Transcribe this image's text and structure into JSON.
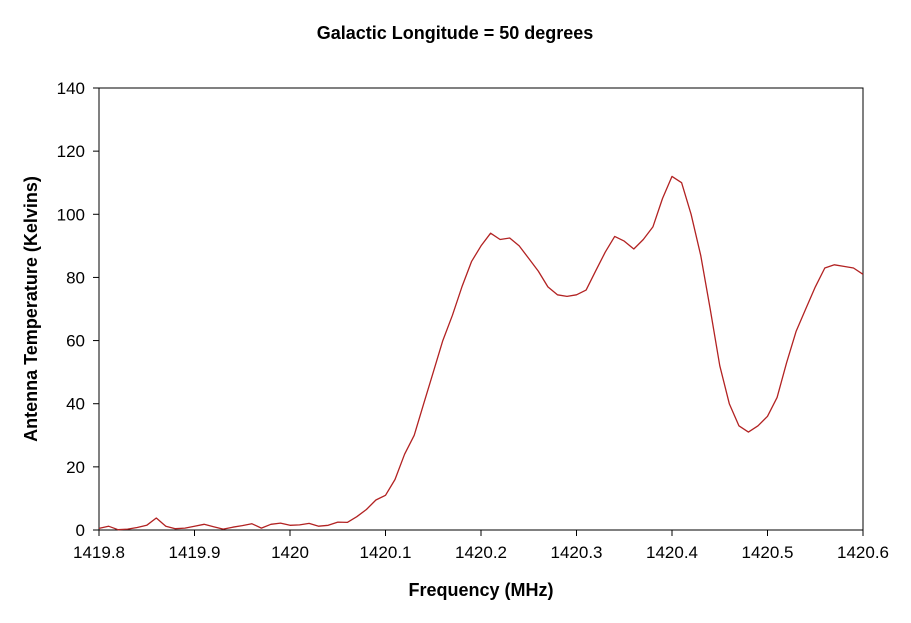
{
  "chart_data": {
    "type": "line",
    "title": "Galactic Longitude = 50 degrees",
    "xlabel": "Frequency (MHz)",
    "ylabel": "Antenna Temperature (Kelvins)",
    "xlim": [
      1419.8,
      1420.6
    ],
    "ylim": [
      0,
      140
    ],
    "x_ticks": [
      "1419.8",
      "1419.9",
      "1420",
      "1420.1",
      "1420.2",
      "1420.3",
      "1420.4",
      "1420.5",
      "1420.6"
    ],
    "y_ticks": [
      "0",
      "20",
      "40",
      "60",
      "80",
      "100",
      "120",
      "140"
    ],
    "grid": false,
    "legend": "none",
    "series": [
      {
        "color": "#b22222",
        "x": [
          1419.8,
          1419.81,
          1419.82,
          1419.83,
          1419.84,
          1419.85,
          1419.86,
          1419.87,
          1419.88,
          1419.89,
          1419.9,
          1419.91,
          1419.92,
          1419.93,
          1419.94,
          1419.95,
          1419.96,
          1419.97,
          1419.98,
          1419.99,
          1420.0,
          1420.01,
          1420.02,
          1420.03,
          1420.04,
          1420.05,
          1420.06,
          1420.07,
          1420.08,
          1420.09,
          1420.1,
          1420.11,
          1420.12,
          1420.13,
          1420.14,
          1420.15,
          1420.16,
          1420.17,
          1420.18,
          1420.19,
          1420.2,
          1420.21,
          1420.22,
          1420.23,
          1420.24,
          1420.25,
          1420.26,
          1420.27,
          1420.28,
          1420.29,
          1420.3,
          1420.31,
          1420.32,
          1420.33,
          1420.34,
          1420.35,
          1420.36,
          1420.37,
          1420.38,
          1420.39,
          1420.4,
          1420.41,
          1420.42,
          1420.43,
          1420.44,
          1420.45,
          1420.46,
          1420.47,
          1420.48,
          1420.49,
          1420.5,
          1420.51,
          1420.52,
          1420.53,
          1420.54,
          1420.55,
          1420.56,
          1420.57,
          1420.58,
          1420.59,
          1420.6
        ],
        "y": [
          0.5,
          1.2,
          0.1,
          0.3,
          0.8,
          1.5,
          3.8,
          1.2,
          0.4,
          0.6,
          1.2,
          1.8,
          1.0,
          0.3,
          0.9,
          1.4,
          2.0,
          0.6,
          1.8,
          2.2,
          1.5,
          1.6,
          2.1,
          1.2,
          1.5,
          2.5,
          2.4,
          4.2,
          6.5,
          9.5,
          11.0,
          16.0,
          24.0,
          30.0,
          40.0,
          50.0,
          60.0,
          68.0,
          77.0,
          85.0,
          90.0,
          94.0,
          92.0,
          92.5,
          90.0,
          86.0,
          82.0,
          77.0,
          74.5,
          74.0,
          74.5,
          76.0,
          82.0,
          88.0,
          93.0,
          91.5,
          89.0,
          92.0,
          96.0,
          105.0,
          112.0,
          110.0,
          100.0,
          87.0,
          70.0,
          52.0,
          40.0,
          33.0,
          31.0,
          33.0,
          36.0,
          42.0,
          53.0,
          63.0,
          70.0,
          77.0,
          83.0,
          84.0,
          83.5,
          83.0,
          81.0
        ]
      }
    ]
  }
}
